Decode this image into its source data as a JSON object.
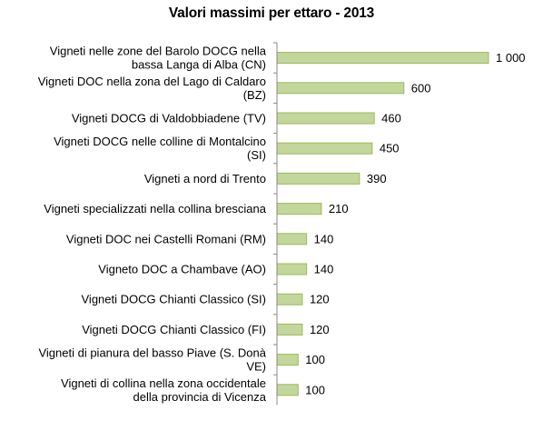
{
  "chart_data": {
    "type": "bar",
    "orientation": "horizontal",
    "title": "Valori massimi per ettaro - 2013",
    "categories": [
      [
        "Vigneti nelle zone del Barolo DOCG nella",
        "bassa Langa di Alba (CN)"
      ],
      [
        "Vigneti DOC nella zona del Lago di Caldaro",
        "(BZ)"
      ],
      [
        "Vigneti DOCG di Valdobbiadene (TV)"
      ],
      [
        "Vigneti DOCG nelle colline di Montalcino",
        "(SI)"
      ],
      [
        "Vigneti a nord di Trento"
      ],
      [
        "Vigneti specializzati nella collina bresciana"
      ],
      [
        "Vigneti DOC nei Castelli Romani (RM)"
      ],
      [
        "Vigneto DOC a Chambave (AO)"
      ],
      [
        "Vigneti DOCG Chianti Classico (SI)"
      ],
      [
        "Vigneti DOCG Chianti Classico (FI)"
      ],
      [
        "Vigneti di pianura del basso Piave (S. Donà",
        "VE)"
      ],
      [
        "Vigneti di collina nella zona occidentale",
        "della provincia di Vicenza"
      ]
    ],
    "values": [
      1000,
      600,
      460,
      450,
      390,
      210,
      140,
      140,
      120,
      120,
      100,
      100
    ],
    "value_labels": [
      "1 000",
      "600",
      "460",
      "450",
      "390",
      "210",
      "140",
      "140",
      "120",
      "120",
      "100",
      "100"
    ],
    "xlim": [
      0,
      1000
    ],
    "bar_color": "#c3d69b",
    "bar_border_color": "#9bbb59",
    "axis_color": "#888888",
    "grid": false,
    "legend": "none"
  }
}
